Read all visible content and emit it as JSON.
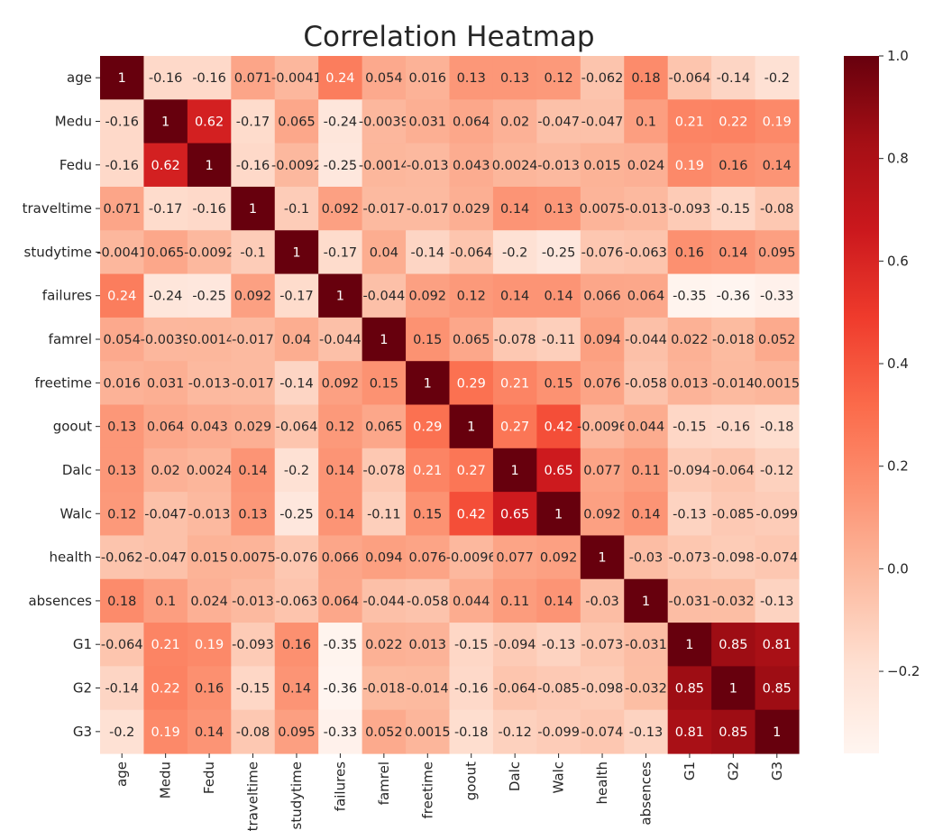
{
  "chart_data": {
    "type": "heatmap",
    "title": "Correlation Heatmap",
    "xlabel": "",
    "ylabel": "",
    "labels": [
      "age",
      "Medu",
      "Fedu",
      "traveltime",
      "studytime",
      "failures",
      "famrel",
      "freetime",
      "goout",
      "Dalc",
      "Walc",
      "health",
      "absences",
      "G1",
      "G2",
      "G3"
    ],
    "values": [
      [
        1,
        -0.16,
        -0.16,
        0.071,
        -0.0041,
        0.24,
        0.054,
        0.016,
        0.13,
        0.13,
        0.12,
        -0.062,
        0.18,
        -0.064,
        -0.14,
        -0.2
      ],
      [
        -0.16,
        1,
        0.62,
        -0.17,
        0.065,
        -0.24,
        -0.0039,
        0.031,
        0.064,
        0.02,
        -0.047,
        -0.047,
        0.1,
        0.21,
        0.22,
        0.19
      ],
      [
        -0.16,
        0.62,
        1,
        -0.16,
        -0.0092,
        -0.25,
        -0.0014,
        -0.013,
        0.043,
        0.0024,
        -0.013,
        0.015,
        0.024,
        0.19,
        0.16,
        0.14
      ],
      [
        0.071,
        -0.17,
        -0.16,
        1,
        -0.1,
        0.092,
        -0.017,
        -0.017,
        0.029,
        0.14,
        0.13,
        0.0075,
        -0.013,
        -0.093,
        -0.15,
        -0.08
      ],
      [
        -0.0041,
        0.065,
        -0.0092,
        -0.1,
        1,
        -0.17,
        0.04,
        -0.14,
        -0.064,
        -0.2,
        -0.25,
        -0.076,
        -0.063,
        0.16,
        0.14,
        0.095
      ],
      [
        0.24,
        -0.24,
        -0.25,
        0.092,
        -0.17,
        1,
        -0.044,
        0.092,
        0.12,
        0.14,
        0.14,
        0.066,
        0.064,
        -0.35,
        -0.36,
        -0.33
      ],
      [
        0.054,
        -0.0039,
        -0.0014,
        -0.017,
        0.04,
        -0.044,
        1,
        0.15,
        0.065,
        -0.078,
        -0.11,
        0.094,
        -0.044,
        0.022,
        -0.018,
        0.052
      ],
      [
        0.016,
        0.031,
        -0.013,
        -0.017,
        -0.14,
        0.092,
        0.15,
        1,
        0.29,
        0.21,
        0.15,
        0.076,
        -0.058,
        0.013,
        -0.014,
        0.0015
      ],
      [
        0.13,
        0.064,
        0.043,
        0.029,
        -0.064,
        0.12,
        0.065,
        0.29,
        1,
        0.27,
        0.42,
        -0.0096,
        0.044,
        -0.15,
        -0.16,
        -0.18
      ],
      [
        0.13,
        0.02,
        0.0024,
        0.14,
        -0.2,
        0.14,
        -0.078,
        0.21,
        0.27,
        1,
        0.65,
        0.077,
        0.11,
        -0.094,
        -0.064,
        -0.12
      ],
      [
        0.12,
        -0.047,
        -0.013,
        0.13,
        -0.25,
        0.14,
        -0.11,
        0.15,
        0.42,
        0.65,
        1,
        0.092,
        0.14,
        -0.13,
        -0.085,
        -0.099
      ],
      [
        -0.062,
        -0.047,
        0.015,
        0.0075,
        -0.076,
        0.066,
        0.094,
        0.076,
        -0.0096,
        0.077,
        0.092,
        1,
        -0.03,
        -0.073,
        -0.098,
        -0.074
      ],
      [
        0.18,
        0.1,
        0.024,
        -0.013,
        -0.063,
        0.064,
        -0.044,
        -0.058,
        0.044,
        0.11,
        0.14,
        -0.03,
        1,
        -0.031,
        -0.032,
        -0.13
      ],
      [
        -0.064,
        0.21,
        0.19,
        -0.093,
        0.16,
        -0.35,
        0.022,
        0.013,
        -0.15,
        -0.094,
        -0.13,
        -0.073,
        -0.031,
        1,
        0.85,
        0.81
      ],
      [
        -0.14,
        0.22,
        0.16,
        -0.15,
        0.14,
        -0.36,
        -0.018,
        -0.014,
        -0.16,
        -0.064,
        -0.085,
        -0.098,
        -0.032,
        0.85,
        1,
        0.85
      ],
      [
        -0.2,
        0.19,
        0.14,
        -0.08,
        0.095,
        -0.33,
        0.052,
        0.0015,
        -0.18,
        -0.12,
        -0.099,
        -0.074,
        -0.13,
        0.81,
        0.85,
        1
      ]
    ],
    "colormap": "Reds",
    "color_range": [
      -0.36,
      1.0
    ],
    "colorbar_ticks": [
      1.0,
      0.8,
      0.6,
      0.4,
      0.2,
      0.0,
      -0.2
    ],
    "colorbar_tick_labels": [
      "1.0",
      "0.8",
      "0.6",
      "0.4",
      "0.2",
      "0.0",
      "−0.2"
    ],
    "annotated": true,
    "grid": false,
    "legend": "colorbar-right"
  }
}
